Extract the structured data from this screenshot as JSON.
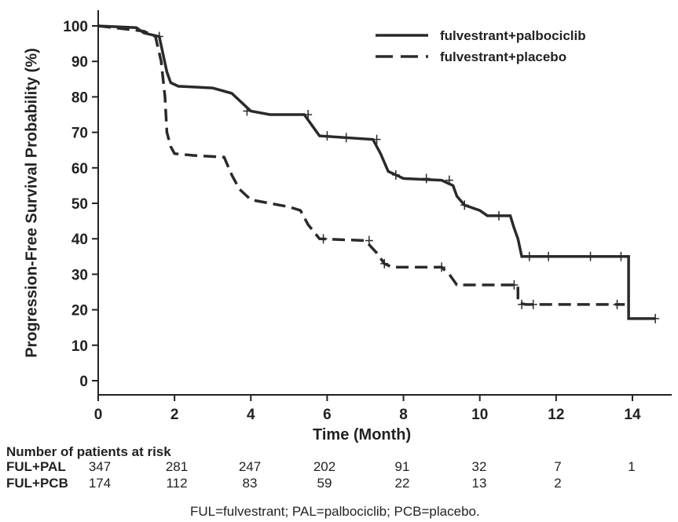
{
  "chart_data": {
    "type": "line",
    "subtype": "kaplan-meier",
    "xlabel": "Time (Month)",
    "ylabel": "Progression-Free Survival Probability (%)",
    "xlim": [
      0,
      15
    ],
    "ylim": [
      0,
      100
    ],
    "xticks": [
      0,
      2,
      4,
      6,
      8,
      10,
      12,
      14
    ],
    "yticks": [
      0,
      10,
      20,
      30,
      40,
      50,
      60,
      70,
      80,
      90,
      100
    ],
    "legend_position": "top-right",
    "series": [
      {
        "name": "fulvestrant+palbociclib",
        "style": "solid",
        "points": [
          [
            0,
            100
          ],
          [
            1.0,
            99.5
          ],
          [
            1.2,
            98
          ],
          [
            1.6,
            97
          ],
          [
            1.7,
            92
          ],
          [
            1.8,
            87
          ],
          [
            1.9,
            84
          ],
          [
            2.1,
            83
          ],
          [
            3,
            82.5
          ],
          [
            3.5,
            81
          ],
          [
            3.8,
            78
          ],
          [
            4,
            76
          ],
          [
            4.5,
            75
          ],
          [
            5.4,
            75
          ],
          [
            5.6,
            72
          ],
          [
            5.8,
            69
          ],
          [
            7.2,
            68
          ],
          [
            7.4,
            64
          ],
          [
            7.6,
            59
          ],
          [
            8,
            57
          ],
          [
            9,
            56.5
          ],
          [
            9.3,
            55
          ],
          [
            9.4,
            52
          ],
          [
            9.6,
            49.5
          ],
          [
            10,
            48
          ],
          [
            10.2,
            46.5
          ],
          [
            10.8,
            46.5
          ],
          [
            10.9,
            43
          ],
          [
            11.0,
            40
          ],
          [
            11.1,
            35
          ],
          [
            13.9,
            35
          ],
          [
            13.9,
            17.5
          ],
          [
            14.6,
            17.5
          ]
        ],
        "censored": [
          [
            1.6,
            97
          ],
          [
            3.9,
            76
          ],
          [
            5.5,
            75
          ],
          [
            6.0,
            69
          ],
          [
            6.5,
            68.5
          ],
          [
            7.3,
            68
          ],
          [
            7.8,
            58
          ],
          [
            8.6,
            57
          ],
          [
            9.2,
            56.5
          ],
          [
            9.6,
            49.5
          ],
          [
            10.5,
            46.5
          ],
          [
            11.3,
            35
          ],
          [
            11.8,
            35
          ],
          [
            12.9,
            35
          ],
          [
            13.7,
            35
          ],
          [
            14.6,
            17.5
          ]
        ]
      },
      {
        "name": "fulvestrant+placebo",
        "style": "dashed",
        "points": [
          [
            0,
            100
          ],
          [
            1.2,
            98.5
          ],
          [
            1.5,
            97
          ],
          [
            1.65,
            90
          ],
          [
            1.75,
            80
          ],
          [
            1.8,
            70
          ],
          [
            1.9,
            66
          ],
          [
            2,
            64
          ],
          [
            2.5,
            63.5
          ],
          [
            3.3,
            63
          ],
          [
            3.5,
            58
          ],
          [
            3.7,
            54
          ],
          [
            4,
            51
          ],
          [
            4.5,
            50
          ],
          [
            5,
            49
          ],
          [
            5.3,
            48
          ],
          [
            5.5,
            44
          ],
          [
            5.8,
            40
          ],
          [
            7.0,
            39.5
          ],
          [
            7.3,
            36
          ],
          [
            7.5,
            33
          ],
          [
            7.7,
            32
          ],
          [
            9.0,
            32
          ],
          [
            9.2,
            30
          ],
          [
            9.4,
            27
          ],
          [
            11.0,
            27
          ],
          [
            11.0,
            22
          ],
          [
            11.2,
            21.5
          ],
          [
            13.8,
            21.5
          ]
        ],
        "censored": [
          [
            5.9,
            40
          ],
          [
            7.1,
            39.5
          ],
          [
            7.5,
            33
          ],
          [
            9.0,
            32
          ],
          [
            10.9,
            27
          ],
          [
            11.1,
            21.5
          ],
          [
            11.4,
            21.5
          ],
          [
            13.6,
            21.5
          ]
        ]
      }
    ]
  },
  "risk_table": {
    "title": "Number of patients at risk",
    "rows": [
      {
        "label": "FUL+PAL",
        "values": [
          "347",
          "281",
          "247",
          "202",
          "91",
          "32",
          "7",
          "1"
        ]
      },
      {
        "label": "FUL+PCB",
        "values": [
          "174",
          "112",
          "83",
          "59",
          "22",
          "13",
          "2",
          ""
        ]
      }
    ]
  },
  "footnote": "FUL=fulvestrant; PAL=palbociclib; PCB=placebo."
}
